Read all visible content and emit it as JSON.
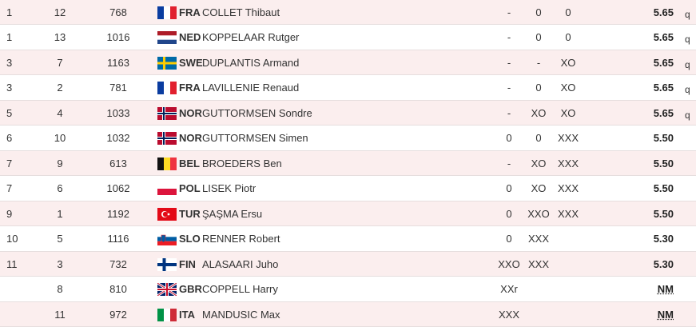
{
  "table": {
    "rows": [
      {
        "rank": "1",
        "order": "12",
        "bib": "768",
        "country": "FRA",
        "name": "COLLET Thibaut",
        "attempts": [
          "-",
          "0",
          "0"
        ],
        "result": "5.65",
        "qual": "q"
      },
      {
        "rank": "1",
        "order": "13",
        "bib": "1016",
        "country": "NED",
        "name": "KOPPELAAR Rutger",
        "attempts": [
          "-",
          "0",
          "0"
        ],
        "result": "5.65",
        "qual": "q"
      },
      {
        "rank": "3",
        "order": "7",
        "bib": "1163",
        "country": "SWE",
        "name": "DUPLANTIS Armand",
        "attempts": [
          "-",
          "-",
          "XO"
        ],
        "result": "5.65",
        "qual": "q"
      },
      {
        "rank": "3",
        "order": "2",
        "bib": "781",
        "country": "FRA",
        "name": "LAVILLENIE Renaud",
        "attempts": [
          "-",
          "0",
          "XO"
        ],
        "result": "5.65",
        "qual": "q"
      },
      {
        "rank": "5",
        "order": "4",
        "bib": "1033",
        "country": "NOR",
        "name": "GUTTORMSEN Sondre",
        "attempts": [
          "-",
          "XO",
          "XO"
        ],
        "result": "5.65",
        "qual": "q"
      },
      {
        "rank": "6",
        "order": "10",
        "bib": "1032",
        "country": "NOR",
        "name": "GUTTORMSEN Simen",
        "attempts": [
          "0",
          "0",
          "XXX"
        ],
        "result": "5.50"
      },
      {
        "rank": "7",
        "order": "9",
        "bib": "613",
        "country": "BEL",
        "name": "BROEDERS Ben",
        "attempts": [
          "-",
          "XO",
          "XXX"
        ],
        "result": "5.50"
      },
      {
        "rank": "7",
        "order": "6",
        "bib": "1062",
        "country": "POL",
        "name": "LISEK Piotr",
        "attempts": [
          "0",
          "XO",
          "XXX"
        ],
        "result": "5.50"
      },
      {
        "rank": "9",
        "order": "1",
        "bib": "1192",
        "country": "TUR",
        "name": "ŞAŞMA Ersu",
        "attempts": [
          "0",
          "XXO",
          "XXX"
        ],
        "result": "5.50"
      },
      {
        "rank": "10",
        "order": "5",
        "bib": "1116",
        "country": "SLO",
        "name": "RENNER Robert",
        "attempts": [
          "0",
          "XXX"
        ],
        "result": "5.30"
      },
      {
        "rank": "11",
        "order": "3",
        "bib": "732",
        "country": "FIN",
        "name": "ALASAARI Juho",
        "attempts": [
          "XXO",
          "XXX"
        ],
        "result": "5.30"
      },
      {
        "order": "8",
        "bib": "810",
        "country": "GBR",
        "name": "COPPELL Harry",
        "attempts": [
          "XXr"
        ],
        "result": "NM"
      },
      {
        "order": "11",
        "bib": "972",
        "country": "ITA",
        "name": "MANDUSIC Max",
        "attempts": [
          "XXX"
        ],
        "result": "NM"
      }
    ]
  }
}
